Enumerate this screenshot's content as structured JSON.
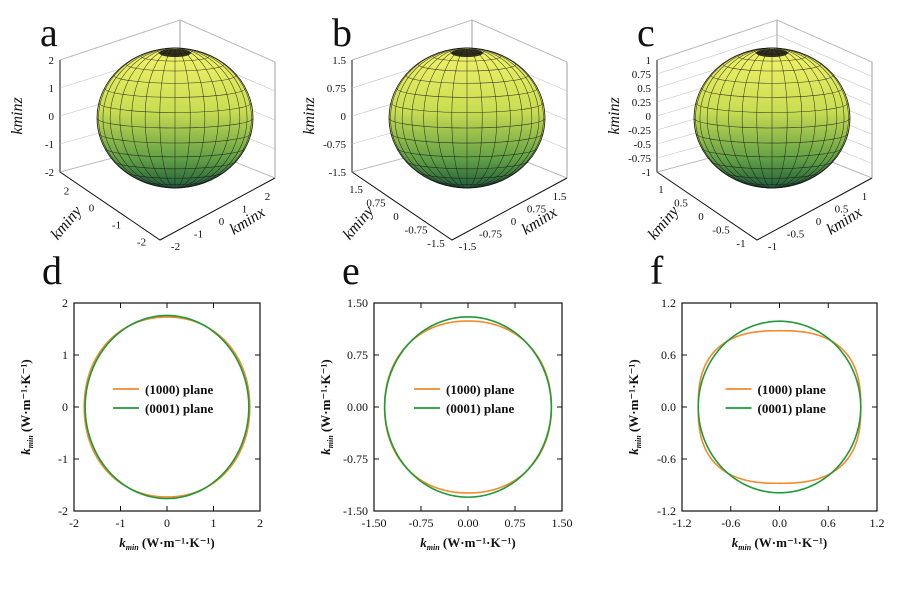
{
  "chart_data": [
    {
      "type": "surface3d",
      "panel_label": "a",
      "zlabel": "kminz",
      "ylabel": "kminy",
      "xlabel": "kminx",
      "z_ticks": [
        "2",
        "1",
        "0",
        "-1",
        "-2"
      ],
      "y_ticks": [
        "2",
        "0",
        "-1",
        "-2"
      ],
      "x_ticks": [
        "-2",
        "-1",
        "0",
        "1",
        "2"
      ],
      "surface": {
        "rx": 1.8,
        "rz": 1.75
      },
      "colors": {
        "top": "#f4f46a",
        "bottom": "#1f5c3a"
      }
    },
    {
      "type": "surface3d",
      "panel_label": "b",
      "zlabel": "kminz",
      "ylabel": "kminy",
      "xlabel": "kminx",
      "z_ticks": [
        "1.5",
        "0.75",
        "0",
        "-0.75",
        "-1.5"
      ],
      "y_ticks": [
        "1.5",
        "0.75",
        "0",
        "-0.75",
        "-1.5"
      ],
      "x_ticks": [
        "-1.5",
        "-0.75",
        "0",
        "0.75",
        "1.5"
      ],
      "surface": {
        "rx": 1.35,
        "rz": 1.25
      },
      "colors": {
        "top": "#f4f46a",
        "bottom": "#1f5c3a"
      }
    },
    {
      "type": "surface3d",
      "panel_label": "c",
      "zlabel": "kminz",
      "ylabel": "kminy",
      "xlabel": "kminx",
      "z_ticks": [
        "1",
        "0.75",
        "0.5",
        "0.25",
        "0",
        "-0.25",
        "-0.5",
        "-0.75",
        "-1"
      ],
      "y_ticks": [
        "1",
        "0.5",
        "0",
        "-0.5",
        "-1"
      ],
      "x_ticks": [
        "-1",
        "-0.5",
        "0",
        "0.5",
        "1"
      ],
      "surface": {
        "rx": 1.0,
        "rz": 0.9
      },
      "colors": {
        "top": "#f4f46a",
        "bottom": "#1f5c3a"
      }
    },
    {
      "type": "line",
      "panel_label": "d",
      "xlabel": {
        "main": "k",
        "sub": "min",
        "unit": " (W·m⁻¹·K⁻¹)"
      },
      "ylabel": {
        "main": "k",
        "sub": "min",
        "unit": " (W·m⁻¹·K⁻¹)"
      },
      "xlim": [
        -2,
        2
      ],
      "ylim": [
        -2,
        2
      ],
      "xticks": [
        -2,
        -1,
        0,
        1,
        2
      ],
      "yticks": [
        -2,
        -1,
        0,
        1,
        2
      ],
      "xtick_labels": [
        "-2",
        "-1",
        "0",
        "1",
        "2"
      ],
      "ytick_labels": [
        "-2",
        "-1",
        "0",
        "1",
        "2"
      ],
      "legend": "center",
      "series": [
        {
          "name": "(1000) plane",
          "color": "#f58a2c",
          "curve": {
            "a": 1.78,
            "b": 1.73,
            "n": 2.1
          }
        },
        {
          "name": "(0001) plane",
          "color": "#1f9a3a",
          "curve": {
            "a": 1.76,
            "b": 1.76,
            "n": 2.0
          }
        }
      ]
    },
    {
      "type": "line",
      "panel_label": "e",
      "xlabel": {
        "main": "k",
        "sub": "min",
        "unit": " (W·m⁻¹·K⁻¹)"
      },
      "ylabel": {
        "main": "k",
        "sub": "min",
        "unit": " (W·m⁻¹·K⁻¹)"
      },
      "xlim": [
        -1.5,
        1.5
      ],
      "ylim": [
        -1.5,
        1.5
      ],
      "xticks": [
        -1.5,
        -0.75,
        0,
        0.75,
        1.5
      ],
      "yticks": [
        -1.5,
        -0.75,
        0,
        0.75,
        1.5
      ],
      "xtick_labels": [
        "-1.50",
        "-0.75",
        "0.00",
        "0.75",
        "1.50"
      ],
      "ytick_labels": [
        "-1.50",
        "-0.75",
        "0.00",
        "0.75",
        "1.50"
      ],
      "legend": "center",
      "series": [
        {
          "name": "(1000) plane",
          "color": "#f58a2c",
          "curve": {
            "a": 1.33,
            "b": 1.24,
            "n": 2.15
          }
        },
        {
          "name": "(0001) plane",
          "color": "#1f9a3a",
          "curve": {
            "a": 1.33,
            "b": 1.3,
            "n": 2.0
          }
        }
      ]
    },
    {
      "type": "line",
      "panel_label": "f",
      "xlabel": {
        "main": "k",
        "sub": "min",
        "unit": " (W·m⁻¹·K⁻¹)"
      },
      "ylabel": {
        "main": "k",
        "sub": "min",
        "unit": " (W·m⁻¹·K⁻¹)"
      },
      "xlim": [
        -1.2,
        1.2
      ],
      "ylim": [
        -1.2,
        1.2
      ],
      "xticks": [
        -1.2,
        -0.6,
        0,
        0.6,
        1.2
      ],
      "yticks": [
        -1.2,
        -0.6,
        0,
        0.6,
        1.2
      ],
      "xtick_labels": [
        "-1.2",
        "-0.6",
        "0.0",
        "0.6",
        "1.2"
      ],
      "ytick_labels": [
        "-1.2",
        "-0.6",
        "0.0",
        "0.6",
        "1.2"
      ],
      "legend": "center",
      "series": [
        {
          "name": "(1000) plane",
          "color": "#f58a2c",
          "curve": {
            "a": 1.0,
            "b": 0.88,
            "n": 2.6
          }
        },
        {
          "name": "(0001) plane",
          "color": "#1f9a3a",
          "curve": {
            "a": 1.0,
            "b": 0.99,
            "n": 2.0
          }
        }
      ]
    }
  ]
}
